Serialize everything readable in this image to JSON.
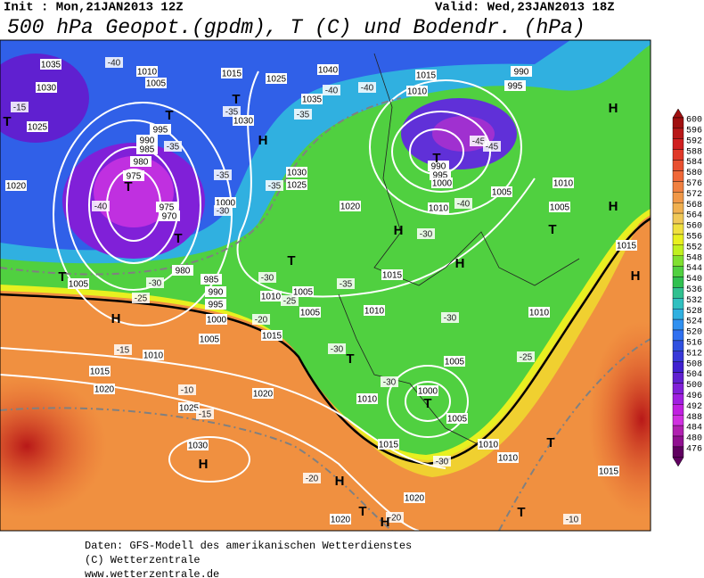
{
  "header": {
    "init": "Init : Mon,21JAN2013 12Z",
    "valid": "Valid: Wed,23JAN2013 18Z",
    "title": "500 hPa Geopot.(gpdm), T (C) und Bodendr. (hPa)"
  },
  "colorbar": {
    "ticks": [
      600,
      596,
      592,
      588,
      584,
      580,
      576,
      572,
      568,
      564,
      560,
      556,
      552,
      548,
      544,
      540,
      536,
      532,
      528,
      524,
      520,
      516,
      512,
      508,
      504,
      500,
      496,
      492,
      488,
      484,
      480,
      476
    ],
    "colors": [
      "#a01010",
      "#b81818",
      "#d02020",
      "#e03828",
      "#e85030",
      "#f06838",
      "#f08040",
      "#f09848",
      "#f0b050",
      "#f0c858",
      "#f0e040",
      "#e8f020",
      "#c0f020",
      "#80e030",
      "#50d040",
      "#30c050",
      "#30c090",
      "#30c0c0",
      "#30b0e0",
      "#3090f0",
      "#3070f0",
      "#3050e0",
      "#3838d8",
      "#4020d0",
      "#6020d0",
      "#8020d8",
      "#a020e0",
      "#c020e0",
      "#d030e0",
      "#b020b0",
      "#901090",
      "#600060"
    ]
  },
  "map": {
    "isobar_labels": [
      "1035",
      "1030",
      "1025",
      "1020",
      "1010",
      "1005",
      "995",
      "990",
      "985",
      "980",
      "975",
      "975",
      "970",
      "980",
      "985",
      "990",
      "995",
      "1000",
      "1005",
      "1010",
      "1015",
      "1020",
      "1025",
      "1030",
      "1020",
      "1010",
      "1005",
      "1005",
      "1015",
      "1015",
      "1010",
      "1000",
      "1025",
      "1030",
      "1020",
      "1030",
      "1025",
      "1015",
      "1040",
      "1035",
      "1015",
      "1010",
      "995",
      "990",
      "990",
      "995",
      "1000",
      "1005",
      "1010",
      "1005",
      "1010",
      "1015",
      "1010",
      "1005",
      "1000",
      "1005",
      "1010",
      "1015",
      "1010",
      "1010",
      "1020",
      "1020",
      "1015",
      "1005"
    ],
    "temperature_labels": [
      "-15",
      "-40",
      "-40",
      "-35",
      "-35",
      "-35",
      "-40",
      "-40",
      "-35",
      "-35",
      "-30",
      "-30",
      "-25",
      "-25",
      "-20",
      "-15",
      "-10",
      "-15",
      "-35",
      "-30",
      "-40",
      "-45",
      "-45",
      "-30",
      "-30",
      "-30",
      "-25",
      "-30",
      "-20",
      "-20",
      "-10",
      "-30"
    ],
    "pressure_centers": [
      "T",
      "T",
      "T",
      "T",
      "T",
      "H",
      "H",
      "T",
      "H",
      "T",
      "T",
      "H",
      "H",
      "H",
      "T",
      "H",
      "T",
      "T",
      "H",
      "H",
      "T",
      "H",
      "T",
      "T"
    ]
  },
  "footer": {
    "lines": [
      "Daten: GFS-Modell des amerikanischen Wetterdienstes",
      "(C) Wetterzentrale",
      "www.wetterzentrale.de"
    ]
  }
}
